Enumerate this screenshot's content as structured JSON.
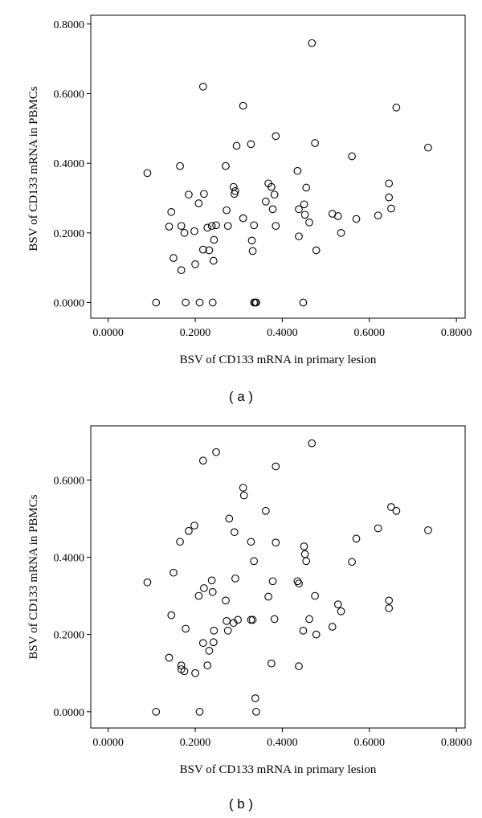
{
  "chart_data": [
    {
      "type": "scatter",
      "panel_label": "( a )",
      "xlabel": "BSV of CD133 mRNA in primary lesion",
      "ylabel": "BSV of CD133 mRNA in PBMCs",
      "xlim": [
        -0.04,
        0.82
      ],
      "ylim": [
        -0.045,
        0.825
      ],
      "x_ticks": [
        0.0,
        0.2,
        0.4,
        0.6,
        0.8
      ],
      "x_tick_labels": [
        "0.0000",
        "0.2000",
        "0.4000",
        "0.6000",
        "0.8000"
      ],
      "y_ticks": [
        0.0,
        0.2,
        0.4,
        0.6,
        0.8
      ],
      "y_tick_labels": [
        "0.0000",
        "0.2000",
        "0.4000",
        "0.6000",
        "0.8000"
      ],
      "points": [
        [
          0.09,
          0.372
        ],
        [
          0.11,
          0.0
        ],
        [
          0.14,
          0.218
        ],
        [
          0.145,
          0.26
        ],
        [
          0.15,
          0.128
        ],
        [
          0.165,
          0.392
        ],
        [
          0.168,
          0.22
        ],
        [
          0.168,
          0.093
        ],
        [
          0.175,
          0.2
        ],
        [
          0.178,
          0.0
        ],
        [
          0.185,
          0.31
        ],
        [
          0.198,
          0.205
        ],
        [
          0.2,
          0.11
        ],
        [
          0.208,
          0.285
        ],
        [
          0.21,
          0.0
        ],
        [
          0.218,
          0.62
        ],
        [
          0.22,
          0.312
        ],
        [
          0.218,
          0.152
        ],
        [
          0.228,
          0.215
        ],
        [
          0.232,
          0.15
        ],
        [
          0.238,
          0.22
        ],
        [
          0.24,
          0.0
        ],
        [
          0.242,
          0.12
        ],
        [
          0.243,
          0.18
        ],
        [
          0.248,
          0.222
        ],
        [
          0.27,
          0.392
        ],
        [
          0.272,
          0.265
        ],
        [
          0.275,
          0.22
        ],
        [
          0.288,
          0.332
        ],
        [
          0.29,
          0.312
        ],
        [
          0.292,
          0.32
        ],
        [
          0.295,
          0.45
        ],
        [
          0.31,
          0.565
        ],
        [
          0.31,
          0.242
        ],
        [
          0.328,
          0.455
        ],
        [
          0.33,
          0.178
        ],
        [
          0.332,
          0.148
        ],
        [
          0.335,
          0.222
        ],
        [
          0.335,
          0.0
        ],
        [
          0.338,
          0.0
        ],
        [
          0.34,
          0.0
        ],
        [
          0.362,
          0.29
        ],
        [
          0.368,
          0.342
        ],
        [
          0.375,
          0.332
        ],
        [
          0.378,
          0.268
        ],
        [
          0.382,
          0.31
        ],
        [
          0.385,
          0.478
        ],
        [
          0.385,
          0.22
        ],
        [
          0.435,
          0.378
        ],
        [
          0.438,
          0.268
        ],
        [
          0.438,
          0.19
        ],
        [
          0.448,
          0.0
        ],
        [
          0.45,
          0.282
        ],
        [
          0.452,
          0.252
        ],
        [
          0.455,
          0.33
        ],
        [
          0.462,
          0.23
        ],
        [
          0.468,
          0.745
        ],
        [
          0.475,
          0.458
        ],
        [
          0.478,
          0.15
        ],
        [
          0.515,
          0.255
        ],
        [
          0.528,
          0.248
        ],
        [
          0.535,
          0.2
        ],
        [
          0.56,
          0.42
        ],
        [
          0.57,
          0.24
        ],
        [
          0.62,
          0.25
        ],
        [
          0.645,
          0.342
        ],
        [
          0.645,
          0.302
        ],
        [
          0.65,
          0.27
        ],
        [
          0.662,
          0.56
        ],
        [
          0.735,
          0.445
        ]
      ]
    },
    {
      "type": "scatter",
      "panel_label": "( b )",
      "xlabel": "BSV of CD133 mRNA in primary lesion",
      "ylabel": "BSV of CD133 mRNA in PBMCs",
      "xlim": [
        -0.04,
        0.82
      ],
      "ylim": [
        -0.042,
        0.74
      ],
      "x_ticks": [
        0.0,
        0.2,
        0.4,
        0.6,
        0.8
      ],
      "x_tick_labels": [
        "0.0000",
        "0.2000",
        "0.4000",
        "0.6000",
        "0.8000"
      ],
      "y_ticks": [
        0.0,
        0.2,
        0.4,
        0.6
      ],
      "y_tick_labels": [
        "0.0000",
        "0.2000",
        "0.4000",
        "0.6000"
      ],
      "points": [
        [
          0.09,
          0.335
        ],
        [
          0.11,
          0.0
        ],
        [
          0.14,
          0.14
        ],
        [
          0.145,
          0.25
        ],
        [
          0.15,
          0.36
        ],
        [
          0.165,
          0.44
        ],
        [
          0.168,
          0.12
        ],
        [
          0.168,
          0.11
        ],
        [
          0.175,
          0.105
        ],
        [
          0.178,
          0.215
        ],
        [
          0.185,
          0.468
        ],
        [
          0.198,
          0.482
        ],
        [
          0.2,
          0.1
        ],
        [
          0.208,
          0.3
        ],
        [
          0.21,
          0.0
        ],
        [
          0.218,
          0.65
        ],
        [
          0.22,
          0.32
        ],
        [
          0.218,
          0.178
        ],
        [
          0.228,
          0.12
        ],
        [
          0.232,
          0.158
        ],
        [
          0.238,
          0.34
        ],
        [
          0.24,
          0.31
        ],
        [
          0.242,
          0.18
        ],
        [
          0.243,
          0.21
        ],
        [
          0.248,
          0.672
        ],
        [
          0.27,
          0.288
        ],
        [
          0.272,
          0.235
        ],
        [
          0.275,
          0.21
        ],
        [
          0.278,
          0.5
        ],
        [
          0.288,
          0.23
        ],
        [
          0.29,
          0.465
        ],
        [
          0.292,
          0.345
        ],
        [
          0.298,
          0.238
        ],
        [
          0.31,
          0.58
        ],
        [
          0.312,
          0.56
        ],
        [
          0.328,
          0.44
        ],
        [
          0.328,
          0.238
        ],
        [
          0.332,
          0.238
        ],
        [
          0.335,
          0.39
        ],
        [
          0.338,
          0.035
        ],
        [
          0.34,
          0.0
        ],
        [
          0.362,
          0.52
        ],
        [
          0.368,
          0.298
        ],
        [
          0.375,
          0.125
        ],
        [
          0.378,
          0.338
        ],
        [
          0.382,
          0.24
        ],
        [
          0.385,
          0.635
        ],
        [
          0.385,
          0.438
        ],
        [
          0.435,
          0.338
        ],
        [
          0.438,
          0.332
        ],
        [
          0.438,
          0.118
        ],
        [
          0.448,
          0.21
        ],
        [
          0.45,
          0.428
        ],
        [
          0.452,
          0.408
        ],
        [
          0.455,
          0.39
        ],
        [
          0.462,
          0.24
        ],
        [
          0.468,
          0.695
        ],
        [
          0.475,
          0.3
        ],
        [
          0.478,
          0.2
        ],
        [
          0.515,
          0.22
        ],
        [
          0.528,
          0.278
        ],
        [
          0.535,
          0.26
        ],
        [
          0.56,
          0.388
        ],
        [
          0.57,
          0.448
        ],
        [
          0.62,
          0.475
        ],
        [
          0.645,
          0.288
        ],
        [
          0.645,
          0.268
        ],
        [
          0.65,
          0.53
        ],
        [
          0.662,
          0.52
        ],
        [
          0.735,
          0.47
        ]
      ]
    }
  ]
}
